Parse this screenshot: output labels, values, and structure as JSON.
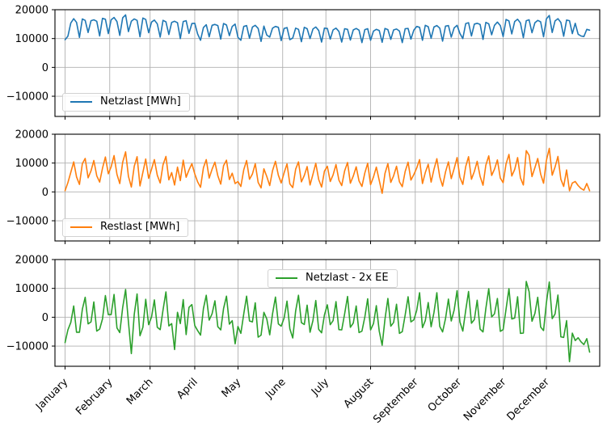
{
  "figure": {
    "background": "#ffffff",
    "grid_color": "#b0b0b0",
    "spine_color": "#000000",
    "tick_color": "#000000",
    "text_color": "#000000"
  },
  "chart_data": {
    "type": "line",
    "layout": "3 vertically stacked subplots sharing one x axis (one year), grid on, box spines",
    "x_unit": "day of year (0 = Jan 1), one sample every 2 days",
    "x_step_days": 2,
    "xlim_days": [
      -7,
      371
    ],
    "ylim": [
      -17000,
      20000
    ],
    "yticks": [
      20000,
      10000,
      0,
      -10000
    ],
    "ytick_labels": [
      "20000",
      "10000",
      "0",
      "−10000"
    ],
    "month_ticks": {
      "labels": [
        "January",
        "February",
        "March",
        "April",
        "May",
        "June",
        "July",
        "August",
        "September",
        "October",
        "November",
        "December"
      ],
      "day_positions": [
        0,
        31,
        59,
        90,
        120,
        151,
        181,
        212,
        243,
        273,
        304,
        334
      ]
    },
    "subplots": [
      {
        "name": "netzlast",
        "legend": "Netzlast [MWh]",
        "legend_position": "lower-left",
        "color": "#1f77b4",
        "values": [
          9600,
          10800,
          15400,
          16900,
          15600,
          10400,
          16800,
          16300,
          12100,
          16200,
          16500,
          16000,
          10900,
          17000,
          16700,
          11700,
          16500,
          17300,
          15900,
          11100,
          17200,
          18200,
          12400,
          16000,
          16800,
          16300,
          10600,
          17100,
          16600,
          12000,
          15700,
          16400,
          15100,
          10500,
          16300,
          15800,
          11400,
          15600,
          16000,
          15500,
          10000,
          15900,
          16200,
          11800,
          15200,
          15300,
          11600,
          9400,
          13800,
          14800,
          10600,
          14600,
          14900,
          14500,
          9800,
          15200,
          14700,
          11000,
          14200,
          15000,
          10400,
          9400,
          14200,
          14500,
          10100,
          14000,
          14600,
          13500,
          9000,
          14300,
          11200,
          10500,
          13600,
          14200,
          13900,
          9300,
          13500,
          13800,
          9600,
          10200,
          13600,
          13200,
          8900,
          13900,
          13400,
          10000,
          13300,
          14000,
          12800,
          8800,
          13600,
          13500,
          9800,
          13000,
          13600,
          12500,
          8800,
          13400,
          13200,
          9500,
          13000,
          13500,
          12900,
          8600,
          13100,
          13400,
          9400,
          12600,
          13200,
          12800,
          8700,
          13500,
          13100,
          9700,
          13000,
          13300,
          12600,
          8600,
          13400,
          13500,
          9800,
          12900,
          14200,
          13900,
          9400,
          14600,
          14100,
          10100,
          14000,
          14500,
          13600,
          9100,
          14300,
          14500,
          10500,
          13700,
          14600,
          11800,
          10000,
          15200,
          15500,
          10900,
          15000,
          15300,
          14900,
          9700,
          15600,
          15100,
          11300,
          14600,
          15700,
          14500,
          10700,
          16600,
          16100,
          11600,
          15900,
          16700,
          15400,
          10300,
          16200,
          16500,
          12000,
          15500,
          16300,
          15800,
          10600,
          16800,
          18000,
          12100,
          16100,
          16900,
          15600,
          10800,
          16400,
          16200,
          11700,
          15300,
          11500,
          10900,
          10700,
          13200,
          12900
        ]
      },
      {
        "name": "restlast",
        "legend": "Restlast [MWh]",
        "legend_position": "lower-left",
        "color": "#ff7f0e",
        "values": [
          400,
          3200,
          6800,
          10400,
          5200,
          2600,
          9800,
          11600,
          4900,
          7300,
          10900,
          5600,
          3400,
          8200,
          12100,
          6300,
          8700,
          12600,
          6100,
          2900,
          10300,
          13900,
          5400,
          1700,
          8900,
          12200,
          2100,
          6800,
          11400,
          4700,
          7900,
          11200,
          5800,
          3100,
          9400,
          12300,
          4200,
          6700,
          2400,
          8600,
          3900,
          11000,
          5100,
          7600,
          9800,
          6200,
          3500,
          1600,
          8400,
          11200,
          4800,
          7900,
          10300,
          5600,
          2700,
          9100,
          11000,
          4300,
          6500,
          2900,
          3600,
          1900,
          7700,
          10900,
          4400,
          6200,
          9800,
          3300,
          1400,
          8000,
          5300,
          2200,
          7400,
          10600,
          5800,
          3100,
          6600,
          9700,
          2800,
          1500,
          7900,
          10400,
          3500,
          5700,
          8800,
          2400,
          6100,
          9900,
          4300,
          1700,
          7200,
          8900,
          3600,
          5900,
          9500,
          4100,
          2200,
          7300,
          10200,
          3000,
          5500,
          8700,
          3800,
          1900,
          6600,
          9900,
          2500,
          5200,
          8600,
          4000,
          -500,
          6400,
          9800,
          3300,
          5600,
          8900,
          3500,
          1800,
          7100,
          10300,
          4100,
          6000,
          8300,
          11200,
          2900,
          6700,
          9600,
          3400,
          7800,
          11500,
          5200,
          2000,
          6900,
          10400,
          4600,
          8100,
          11900,
          5100,
          2600,
          8800,
          12200,
          4400,
          7100,
          10600,
          5400,
          2300,
          9300,
          12500,
          5700,
          7900,
          11100,
          4800,
          3200,
          9700,
          13000,
          5500,
          7800,
          11900,
          4900,
          2400,
          14300,
          12700,
          5300,
          8400,
          11600,
          6200,
          3000,
          10900,
          15100,
          5800,
          8600,
          12300,
          4400,
          1900,
          7600,
          400,
          3100,
          3600,
          2200,
          1200,
          600,
          2900,
          400
        ]
      },
      {
        "name": "netzlast-minus-2x-ee",
        "legend": "Netzlast - 2x EE",
        "legend_position": "upper-center",
        "color": "#2ca02c",
        "values": [
          -8800,
          -4400,
          -1800,
          3900,
          -5200,
          -5200,
          2800,
          6900,
          -2300,
          -1600,
          5300,
          -4800,
          -4100,
          -600,
          7500,
          900,
          900,
          7900,
          -3700,
          -5300,
          3400,
          9600,
          -1600,
          -12600,
          1000,
          8100,
          -6400,
          -3500,
          6200,
          -2600,
          100,
          6000,
          -3500,
          -4300,
          2500,
          8800,
          -3000,
          -2200,
          -11200,
          1700,
          -2200,
          6100,
          -6000,
          3400,
          4400,
          -2900,
          -4600,
          -6200,
          3000,
          7600,
          -1000,
          1200,
          5700,
          -3300,
          -4400,
          3000,
          7300,
          -2400,
          -1200,
          -9200,
          -3200,
          -5600,
          1200,
          7300,
          -1300,
          -1600,
          5000,
          -6900,
          -6200,
          1700,
          -600,
          -6100,
          1200,
          7000,
          -2300,
          -3100,
          -300,
          5600,
          -4000,
          -7200,
          2200,
          7600,
          -1900,
          -2500,
          4200,
          -5200,
          -1100,
          5800,
          -4200,
          -5400,
          800,
          4300,
          -2600,
          -1200,
          5400,
          -4300,
          -4400,
          1200,
          7200,
          -3500,
          -2000,
          3900,
          -5300,
          -4800,
          100,
          6400,
          -4400,
          -2200,
          4000,
          -4800,
          -9700,
          -700,
          6500,
          -3100,
          -1800,
          4500,
          -5600,
          -5000,
          800,
          7100,
          -1600,
          -900,
          2400,
          8500,
          -3600,
          -1200,
          5100,
          -3300,
          1600,
          8500,
          -3200,
          -5100,
          -500,
          6300,
          -1300,
          2500,
          9200,
          -1600,
          -4800,
          2400,
          8900,
          -2100,
          -800,
          5900,
          -4100,
          -5100,
          3000,
          9900,
          100,
          1200,
          6500,
          -4900,
          -4300,
          2800,
          9900,
          -600,
          -300,
          7100,
          -5600,
          -5500,
          12400,
          8900,
          -1400,
          1300,
          6900,
          -3400,
          -4600,
          5000,
          12200,
          -500,
          1100,
          7700,
          -6800,
          -7000,
          -1200,
          -15400,
          -5500,
          -8100,
          -7100,
          -8500,
          -9500,
          -7400,
          -12100
        ]
      }
    ]
  }
}
